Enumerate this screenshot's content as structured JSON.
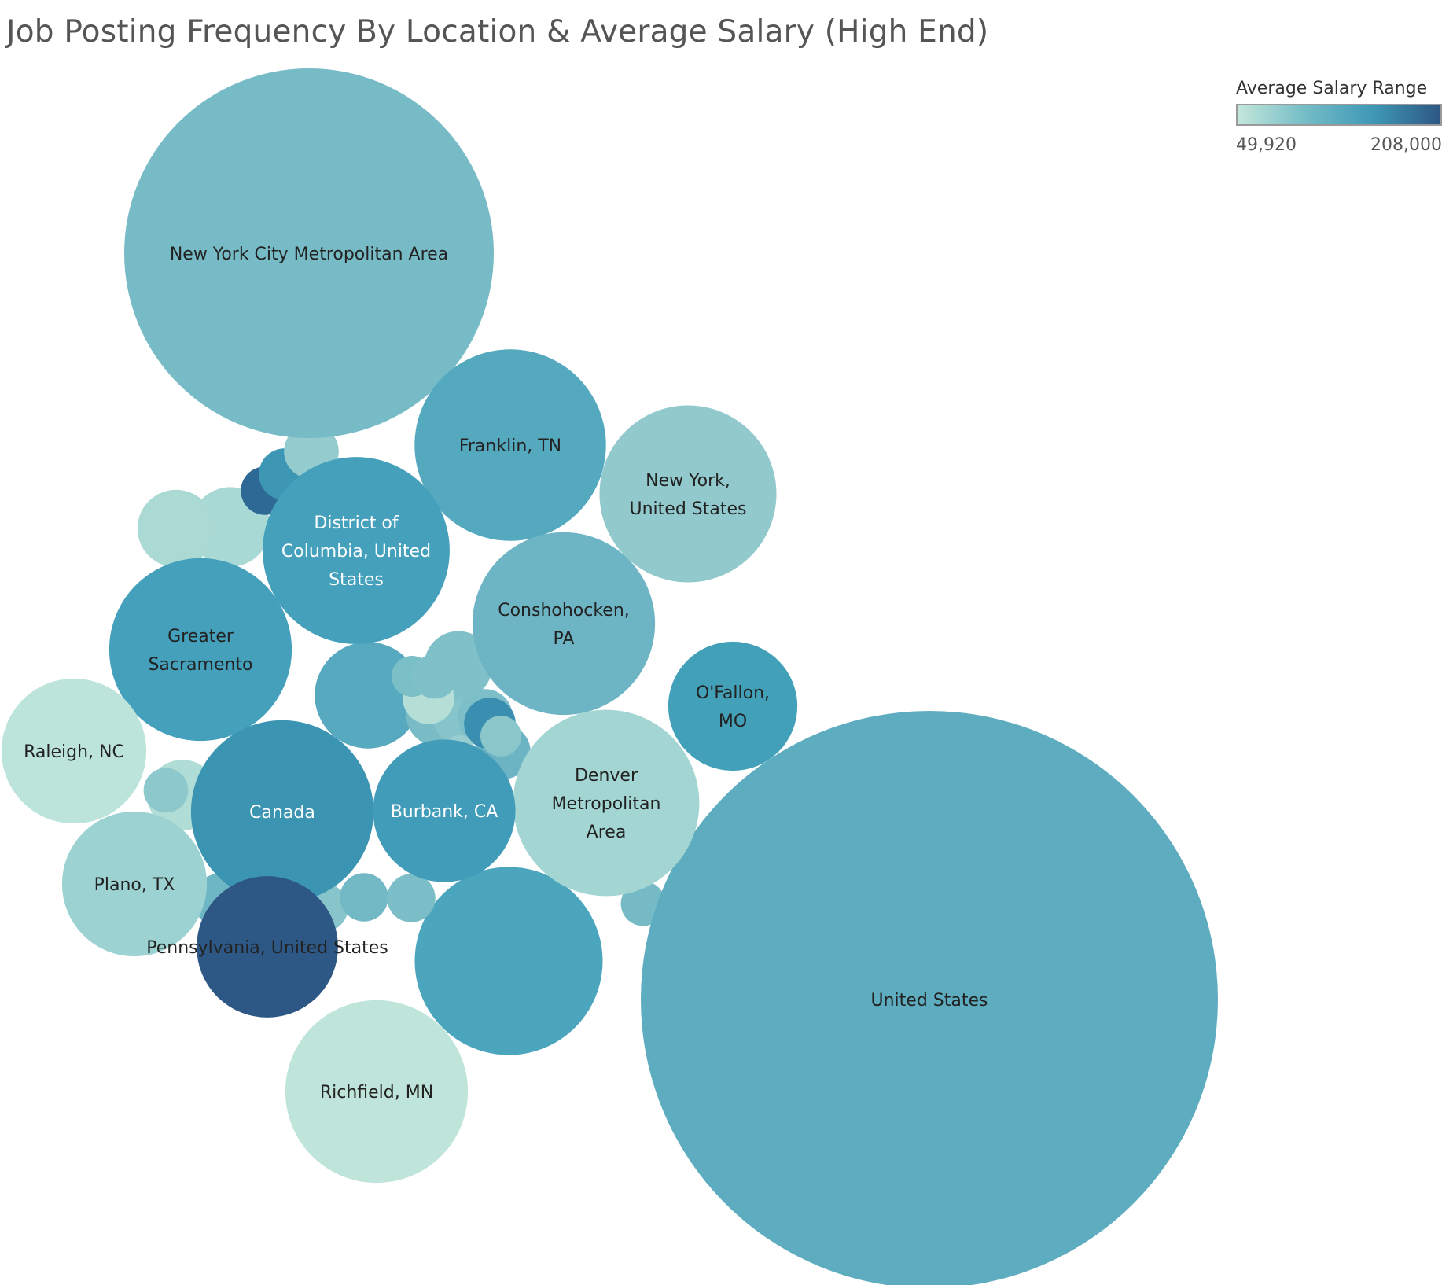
{
  "chart_data": {
    "type": "packed-bubble",
    "title": "Job Posting Frequency By Location & Average Salary (High End)",
    "size_measure": "job posting frequency",
    "color_measure": "average salary (high end)",
    "legend": {
      "title": "Average Salary Range",
      "min_label": "49,920",
      "max_label": "208,000",
      "min": 49920,
      "max": 208000,
      "placement": "top-right",
      "colors": [
        "#c4e7db",
        "#74bcc6",
        "#3f98b6",
        "#2d5784"
      ]
    },
    "bubbles": [
      {
        "label": "United States",
        "lines": [
          "United States"
        ],
        "count": 100,
        "salary": 122000,
        "color": "#5dacbf"
      },
      {
        "label": "New York City Metropolitan Area",
        "lines": [
          "New York City Metropolitan Area"
        ],
        "count": 41,
        "salary": 110000,
        "color": "#77bbc6"
      },
      {
        "label": "Franklin, TN",
        "lines": [
          "Franklin, TN"
        ],
        "count": 11,
        "salary": 130000,
        "color": "#55a9bf"
      },
      {
        "label": "New York, United States",
        "lines": [
          "New York,",
          "United States"
        ],
        "count": 9.4,
        "salary": 95000,
        "color": "#91c9cd"
      },
      {
        "label": "District of Columbia, United States",
        "lines": [
          "District of",
          "Columbia, United",
          "States"
        ],
        "count": 10.5,
        "salary": 145000,
        "color": "#44a0bb"
      },
      {
        "label": "Conshohocken, PA",
        "lines": [
          "Conshohocken,",
          "PA"
        ],
        "count": 10,
        "salary": 118000,
        "color": "#6db5c4"
      },
      {
        "label": "Greater Sacramento",
        "lines": [
          "Greater",
          "Sacramento"
        ],
        "count": 10,
        "salary": 145000,
        "color": "#44a0bb"
      },
      {
        "label": "O'Fallon, MO",
        "lines": [
          "O'Fallon,",
          "MO"
        ],
        "count": 5,
        "salary": 150000,
        "color": "#43a0b9"
      },
      {
        "label": "Raleigh, NC",
        "lines": [
          "Raleigh, NC"
        ],
        "count": 6.3,
        "salary": 62000,
        "color": "#bde4da"
      },
      {
        "label": "Denver Metropolitan Area",
        "lines": [
          "Denver",
          "Metropolitan",
          "Area"
        ],
        "count": 10.4,
        "salary": 85000,
        "color": "#a3d6d3"
      },
      {
        "label": "Canada",
        "lines": [
          "Canada"
        ],
        "count": 10,
        "salary": 155000,
        "color": "#3b95b2"
      },
      {
        "label": "Burbank, CA",
        "lines": [
          "Burbank, CA"
        ],
        "count": 6.1,
        "salary": 150000,
        "color": "#419cb9"
      },
      {
        "label": "Plano, TX",
        "lines": [
          "Plano, TX"
        ],
        "count": 6.3,
        "salary": 88000,
        "color": "#9dd2d2"
      },
      {
        "label": "Pennsylvania, United States",
        "lines": [
          "Pennsylvania, United States"
        ],
        "count": 6,
        "salary": 208000,
        "color": "#2d5784"
      },
      {
        "label": "Richfield, MN",
        "lines": [
          "Richfield, MN"
        ],
        "count": 10,
        "salary": 55000,
        "color": "#bfe4d9"
      }
    ],
    "unlabeled_bubbles": [
      {
        "count": 10.6,
        "salary": 140000,
        "color": "#4aa5bd"
      },
      {
        "count": 3.4,
        "salary": 125000,
        "color": "#57a9bf"
      },
      {
        "count": 1.9,
        "salary": 82000,
        "color": "#a9d9d4"
      },
      {
        "count": 1.5,
        "salary": 72000,
        "color": "#b0ddd5"
      },
      {
        "count": 1.8,
        "salary": 80000,
        "color": "#abdad4"
      },
      {
        "count": 1.2,
        "salary": 112000,
        "color": "#79bcc6"
      },
      {
        "count": 1.0,
        "salary": 105000,
        "color": "#85c4ca"
      },
      {
        "count": 0.9,
        "salary": 108000,
        "color": "#7dbfc8"
      },
      {
        "count": 0.9,
        "salary": 118000,
        "color": "#6cb4c4"
      },
      {
        "count": 1.4,
        "salary": 108000,
        "color": "#80c0c8"
      },
      {
        "count": 0.8,
        "salary": 60000,
        "color": "#b5ded6"
      },
      {
        "count": 0.8,
        "salary": 165000,
        "color": "#3a8eb0"
      },
      {
        "count": 0.7,
        "salary": 195000,
        "color": "#2e6894"
      },
      {
        "count": 0.8,
        "salary": 155000,
        "color": "#3d97b4"
      },
      {
        "count": 0.9,
        "salary": 92000,
        "color": "#93cbce"
      },
      {
        "count": 0.7,
        "salary": 102000,
        "color": "#88c5ca"
      },
      {
        "count": 0.7,
        "salary": 112000,
        "color": "#72b8c5"
      },
      {
        "count": 0.7,
        "salary": 108000,
        "color": "#7bbec7"
      },
      {
        "count": 0.9,
        "salary": 118000,
        "color": "#6fb6c4"
      },
      {
        "count": 0.6,
        "salary": 98000,
        "color": "#8dc8cc"
      },
      {
        "count": 0.6,
        "salary": 112000,
        "color": "#76bac6"
      },
      {
        "count": 0.5,
        "salary": 108000,
        "color": "#7bbfc7"
      },
      {
        "count": 0.6,
        "salary": 108000,
        "color": "#80c0c8"
      },
      {
        "count": 0.5,
        "salary": 100000,
        "color": "#8bc6cb"
      },
      {
        "count": 0.3,
        "salary": 90000,
        "color": "#98cecf"
      }
    ]
  }
}
